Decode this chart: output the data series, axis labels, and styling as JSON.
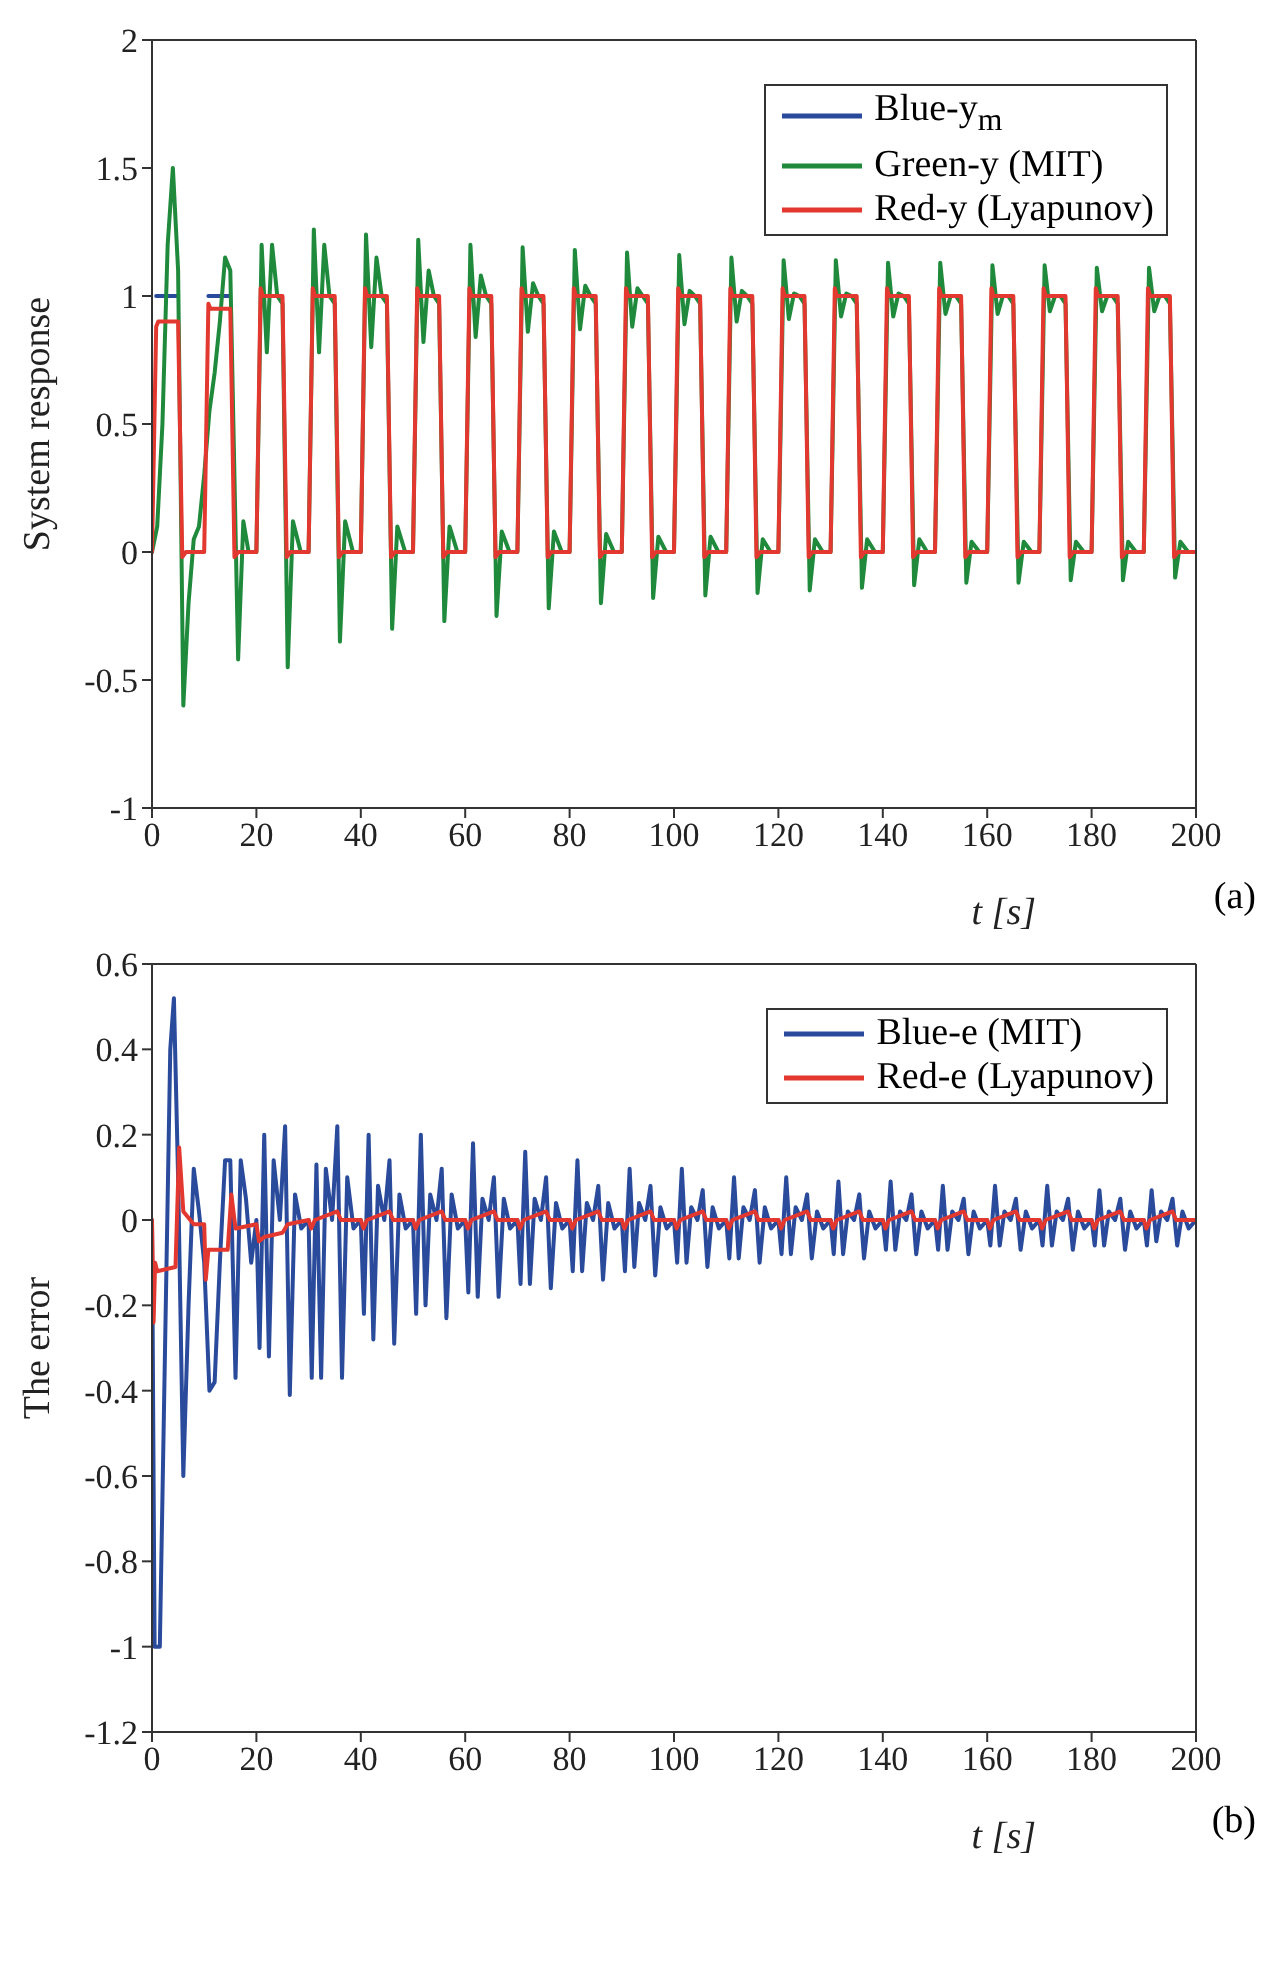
{
  "chart_data": [
    {
      "type": "line",
      "xlabel": "t [s]",
      "ylabel": "System response",
      "annotations": [
        "(a)"
      ],
      "xlim": [
        0,
        200
      ],
      "xticks": [
        0,
        20,
        40,
        60,
        80,
        100,
        120,
        140,
        160,
        180,
        200
      ],
      "ylim": [
        -1,
        2
      ],
      "yticks": [
        -1,
        -0.5,
        0,
        0.5,
        1,
        1.5,
        2
      ],
      "legend": "top right",
      "series": [
        {
          "name": "Blue-y$_{m}$",
          "color": "#2a4b9b",
          "x": [
            0.8,
            5,
            8,
            10.8,
            15
          ],
          "values": [
            1,
            1,
            null,
            1,
            1
          ]
        },
        {
          "name": "Green-y (MIT)",
          "color": "#1f8a3b",
          "x": [
            0,
            1,
            2,
            3,
            4,
            5,
            6,
            7,
            8,
            9,
            10,
            11,
            12,
            13,
            14,
            15,
            16.5,
            17.5,
            18.5,
            20,
            21,
            22,
            23,
            24,
            25,
            26,
            27,
            28.5,
            30,
            31,
            32,
            33,
            34,
            35,
            36,
            37,
            38.5,
            40,
            41,
            42,
            43,
            44,
            45,
            46,
            47,
            48.5,
            50,
            51,
            52,
            53,
            54,
            55,
            56,
            57,
            58.5,
            60,
            61,
            62,
            63,
            64,
            65,
            66,
            67,
            68.5,
            70,
            71,
            72,
            73,
            74,
            75,
            76,
            77,
            78.5,
            80,
            81,
            82,
            83,
            84,
            85,
            86,
            87,
            88.5,
            90,
            91,
            92,
            93,
            94,
            95,
            96,
            97,
            98.5,
            100,
            101,
            102,
            103,
            104,
            105,
            106,
            107,
            108.5,
            110,
            111,
            112,
            113,
            114,
            115,
            116,
            117,
            118.5,
            120,
            121,
            122,
            123,
            124,
            125,
            126,
            127,
            128.5,
            130,
            131,
            132,
            133,
            134,
            135,
            136,
            137,
            138.5,
            140,
            141,
            142,
            143,
            144,
            145,
            146,
            147,
            148.5,
            150,
            151,
            152,
            153,
            154,
            155,
            156,
            157,
            158.5,
            160,
            161,
            162,
            163,
            164,
            165,
            166,
            167,
            168.5,
            170,
            171,
            172,
            173,
            174,
            175,
            176,
            177,
            178.5,
            180,
            181,
            182,
            183,
            184,
            185,
            186,
            187,
            188.5,
            190,
            191,
            192,
            193,
            194,
            195,
            196,
            197,
            198.5,
            200
          ],
          "values": [
            0,
            0.1,
            0.5,
            1.2,
            1.5,
            1.1,
            -0.6,
            -0.2,
            0.05,
            0.1,
            0.3,
            0.55,
            0.7,
            0.9,
            1.15,
            1.1,
            -0.42,
            0.12,
            0,
            0,
            1.2,
            0.78,
            1.2,
            1,
            0.97,
            -0.45,
            0.12,
            0,
            0,
            1.26,
            0.78,
            1.2,
            1,
            0.97,
            -0.35,
            0.12,
            0,
            0,
            1.24,
            0.8,
            1.15,
            1,
            0.97,
            -0.3,
            0.1,
            0,
            0,
            1.22,
            0.82,
            1.1,
            1,
            0.97,
            -0.27,
            0.1,
            0,
            0,
            1.2,
            0.84,
            1.08,
            1,
            0.97,
            -0.25,
            0.08,
            0,
            0,
            1.19,
            0.86,
            1.05,
            1,
            0.97,
            -0.22,
            0.08,
            0,
            0,
            1.18,
            0.87,
            1.04,
            1,
            0.97,
            -0.2,
            0.07,
            0,
            0,
            1.17,
            0.88,
            1.03,
            1,
            0.97,
            -0.18,
            0.06,
            0,
            0,
            1.16,
            0.89,
            1.02,
            1,
            0.97,
            -0.17,
            0.06,
            0,
            0,
            1.15,
            0.9,
            1.02,
            1,
            0.97,
            -0.16,
            0.05,
            0,
            0,
            1.14,
            0.91,
            1.01,
            1,
            0.97,
            -0.15,
            0.05,
            0,
            0,
            1.14,
            0.92,
            1.01,
            1,
            0.97,
            -0.14,
            0.05,
            0,
            0,
            1.13,
            0.92,
            1.01,
            1,
            0.97,
            -0.13,
            0.05,
            0,
            0,
            1.13,
            0.93,
            1,
            1,
            0.97,
            -0.12,
            0.04,
            0,
            0,
            1.12,
            0.93,
            1,
            1,
            0.97,
            -0.12,
            0.04,
            0,
            0,
            1.12,
            0.94,
            1,
            1,
            0.97,
            -0.11,
            0.04,
            0,
            0,
            1.11,
            0.94,
            1,
            1,
            0.97,
            -0.11,
            0.04,
            0,
            0,
            1.11,
            0.94,
            1,
            1,
            0.97,
            -0.1,
            0.04,
            0,
            0
          ]
        },
        {
          "name": "Red-y (Lyapunov)",
          "color": "#e2382f",
          "x": [
            0,
            0.8,
            1.2,
            5,
            5.8,
            6.5,
            10,
            10.8,
            11.2,
            15,
            15.8,
            16.5,
            20,
            20.8,
            21.2,
            25,
            25.8,
            26.5,
            30,
            30.8,
            31.2,
            35,
            35.8,
            36.5,
            40,
            40.8,
            41.2,
            45,
            45.8,
            46.5,
            50,
            50.8,
            51.2,
            55,
            55.8,
            56.5,
            60,
            60.8,
            61.2,
            65,
            65.8,
            66.5,
            70,
            70.8,
            71.2,
            75,
            75.8,
            76.5,
            80,
            80.8,
            81.2,
            85,
            85.8,
            86.5,
            90,
            90.8,
            91.2,
            95,
            95.8,
            96.5,
            100,
            100.8,
            101.2,
            105,
            105.8,
            106.5,
            110,
            110.8,
            111.2,
            115,
            115.8,
            116.5,
            120,
            120.8,
            121.2,
            125,
            125.8,
            126.5,
            130,
            130.8,
            131.2,
            135,
            135.8,
            136.5,
            140,
            140.8,
            141.2,
            145,
            145.8,
            146.5,
            150,
            150.8,
            151.2,
            155,
            155.8,
            156.5,
            160,
            160.8,
            161.2,
            165,
            165.8,
            166.5,
            170,
            170.8,
            171.2,
            175,
            175.8,
            176.5,
            180,
            180.8,
            181.2,
            185,
            185.8,
            186.5,
            190,
            190.8,
            191.2,
            195,
            195.8,
            196.5,
            200
          ],
          "values": [
            0,
            0.88,
            0.9,
            0.9,
            -0.02,
            0,
            0,
            0.97,
            0.95,
            0.95,
            -0.02,
            0,
            0,
            1.03,
            1,
            1,
            -0.02,
            0,
            0,
            1.03,
            1,
            1,
            -0.02,
            0,
            0,
            1.03,
            1,
            1,
            -0.02,
            0,
            0,
            1.03,
            1,
            1,
            -0.02,
            0,
            0,
            1.03,
            1,
            1,
            -0.02,
            0,
            0,
            1.03,
            1,
            1,
            -0.02,
            0,
            0,
            1.03,
            1,
            1,
            -0.02,
            0,
            0,
            1.03,
            1,
            1,
            -0.02,
            0,
            0,
            1.03,
            1,
            1,
            -0.02,
            0,
            0,
            1.03,
            1,
            1,
            -0.02,
            0,
            0,
            1.03,
            1,
            1,
            -0.02,
            0,
            0,
            1.03,
            1,
            1,
            -0.02,
            0,
            0,
            1.03,
            1,
            1,
            -0.02,
            0,
            0,
            1.03,
            1,
            1,
            -0.02,
            0,
            0,
            1.03,
            1,
            1,
            -0.02,
            0,
            0,
            1.03,
            1,
            1,
            -0.02,
            0,
            0,
            1.03,
            1,
            1,
            -0.02,
            0,
            0,
            1.03,
            1,
            1,
            -0.02,
            0,
            0
          ]
        }
      ]
    },
    {
      "type": "line",
      "xlabel": "t [s]",
      "ylabel": "The error",
      "annotations": [
        "(b)"
      ],
      "xlim": [
        0,
        200
      ],
      "xticks": [
        0,
        20,
        40,
        60,
        80,
        100,
        120,
        140,
        160,
        180,
        200
      ],
      "ylim": [
        -1.2,
        0.6
      ],
      "yticks": [
        -1.2,
        -1,
        -0.8,
        -0.6,
        -0.4,
        -0.2,
        0,
        0.2,
        0.4,
        0.6
      ],
      "legend": "top right",
      "series": [
        {
          "name": "Blue-e (MIT)",
          "color": "#2a4b9b",
          "x": [
            0,
            0.5,
            1.5,
            2.5,
            3.5,
            4.2,
            5,
            6,
            7,
            8,
            9,
            10,
            11,
            12,
            13,
            14,
            15,
            16,
            17,
            18,
            19,
            20,
            20.6,
            21.5,
            22.4,
            23.3,
            24.5,
            25.5,
            26.4,
            27.4,
            28.6,
            30,
            30.6,
            31.5,
            32.4,
            33.3,
            34.5,
            35.5,
            36.4,
            37.4,
            38.6,
            40,
            40.6,
            41.5,
            42.4,
            43.3,
            44.5,
            45.5,
            46.4,
            47.4,
            48.6,
            50,
            50.6,
            51.5,
            52.4,
            53.3,
            54.5,
            55.5,
            56.4,
            57.4,
            58.6,
            60,
            60.6,
            61.5,
            62.4,
            63.3,
            64.5,
            65.5,
            66.4,
            67.4,
            68.6,
            70,
            70.6,
            71.5,
            72.4,
            73.3,
            74.5,
            75.5,
            76.4,
            77.4,
            78.6,
            80,
            80.6,
            81.5,
            82.4,
            83.3,
            84.5,
            85.5,
            86.4,
            87.4,
            88.6,
            90,
            90.6,
            91.5,
            92.4,
            93.3,
            94.5,
            95.5,
            96.4,
            97.4,
            98.6,
            100,
            100.6,
            101.5,
            102.4,
            103.3,
            104.5,
            105.5,
            106.4,
            107.4,
            108.6,
            110,
            110.6,
            111.5,
            112.4,
            113.3,
            114.5,
            115.5,
            116.4,
            117.4,
            118.6,
            120,
            120.6,
            121.5,
            122.4,
            123.3,
            124.5,
            125.5,
            126.4,
            127.4,
            128.6,
            130,
            130.6,
            131.5,
            132.4,
            133.3,
            134.5,
            135.5,
            136.4,
            137.4,
            138.6,
            140,
            140.6,
            141.5,
            142.4,
            143.3,
            144.5,
            145.5,
            146.4,
            147.4,
            148.6,
            150,
            150.6,
            151.5,
            152.4,
            153.3,
            154.5,
            155.5,
            156.4,
            157.4,
            158.6,
            160,
            160.6,
            161.5,
            162.4,
            163.3,
            164.5,
            165.5,
            166.4,
            167.4,
            168.6,
            170,
            170.6,
            171.5,
            172.4,
            173.3,
            174.5,
            175.5,
            176.4,
            177.4,
            178.6,
            180,
            180.6,
            181.5,
            182.4,
            183.3,
            184.5,
            185.5,
            186.4,
            187.4,
            188.6,
            190,
            190.6,
            191.5,
            192.4,
            193.3,
            194.5,
            195.5,
            196.4,
            197.4,
            198.6,
            200
          ],
          "values": [
            0,
            -1,
            -1,
            -0.3,
            0.4,
            0.52,
            0.1,
            -0.6,
            -0.2,
            0.12,
            0.02,
            -0.1,
            -0.4,
            -0.38,
            -0.1,
            0.14,
            0.14,
            -0.37,
            0.14,
            0.05,
            -0.1,
            0,
            -0.3,
            0.2,
            -0.32,
            0.14,
            0,
            0.22,
            -0.41,
            0.06,
            -0.02,
            0,
            -0.37,
            0.13,
            -0.37,
            0.12,
            0,
            0.22,
            -0.37,
            0.1,
            -0.02,
            0,
            -0.22,
            0.2,
            -0.28,
            0.08,
            0,
            0.14,
            -0.29,
            0.06,
            -0.02,
            0,
            -0.22,
            0.2,
            -0.2,
            0.06,
            0,
            0.12,
            -0.23,
            0.06,
            -0.02,
            0,
            -0.17,
            0.18,
            -0.18,
            0.05,
            0,
            0.1,
            -0.18,
            0.05,
            -0.02,
            0,
            -0.15,
            0.16,
            -0.15,
            0.05,
            0,
            0.1,
            -0.16,
            0.04,
            -0.02,
            0,
            -0.12,
            0.14,
            -0.12,
            0.04,
            0,
            0.08,
            -0.14,
            0.04,
            -0.02,
            0,
            -0.12,
            0.12,
            -0.11,
            0.04,
            0,
            0.08,
            -0.13,
            0.03,
            -0.02,
            0,
            -0.1,
            0.12,
            -0.1,
            0.03,
            0,
            0.07,
            -0.11,
            0.03,
            -0.02,
            0,
            -0.09,
            0.1,
            -0.09,
            0.03,
            0,
            0.07,
            -0.1,
            0.03,
            -0.02,
            0,
            -0.08,
            0.1,
            -0.08,
            0.03,
            0,
            0.06,
            -0.09,
            0.02,
            -0.02,
            0,
            -0.08,
            0.09,
            -0.08,
            0.02,
            0,
            0.06,
            -0.09,
            0.02,
            -0.02,
            0,
            -0.07,
            0.09,
            -0.07,
            0.02,
            0,
            0.06,
            -0.08,
            0.02,
            -0.02,
            0,
            -0.07,
            0.08,
            -0.07,
            0.02,
            0,
            0.05,
            -0.08,
            0.02,
            -0.02,
            0,
            -0.06,
            0.08,
            -0.06,
            0.02,
            0,
            0.05,
            -0.07,
            0.02,
            -0.02,
            0,
            -0.06,
            0.08,
            -0.06,
            0.02,
            0,
            0.05,
            -0.07,
            0.02,
            -0.02,
            0,
            -0.06,
            0.07,
            -0.06,
            0.02,
            0,
            0.05,
            -0.07,
            0.02,
            -0.02,
            0,
            -0.06,
            0.07,
            -0.05,
            0.02,
            0,
            0.05,
            -0.06,
            0.02,
            -0.02,
            0
          ]
        },
        {
          "name": "Red-e (Lyapunov)",
          "color": "#e2382f",
          "x": [
            0,
            0.3,
            0.6,
            1,
            4.5,
            5.2,
            6,
            8,
            10,
            10.3,
            10.8,
            14.5,
            15.2,
            16,
            20,
            20.5,
            21.5,
            25,
            26,
            30,
            30.5,
            31.2,
            35.5,
            36.2,
            40,
            40.5,
            41.2,
            45.5,
            46.2,
            50,
            50.5,
            51.2,
            55.5,
            56.2,
            60,
            60.5,
            61.2,
            65.5,
            66.2,
            70,
            70.5,
            71.2,
            75.5,
            76.2,
            80,
            80.5,
            81.2,
            85.5,
            86.2,
            90,
            90.5,
            91.2,
            95.5,
            96.2,
            100,
            100.5,
            101.2,
            105.5,
            106.2,
            110,
            110.5,
            111.2,
            115.5,
            116.2,
            120,
            120.5,
            121.2,
            125.5,
            126.2,
            130,
            130.5,
            131.2,
            135.5,
            136.2,
            140,
            140.5,
            141.2,
            145.5,
            146.2,
            150,
            150.5,
            151.2,
            155.5,
            156.2,
            160,
            160.5,
            161.2,
            165.5,
            166.2,
            170,
            170.5,
            171.2,
            175.5,
            176.2,
            180,
            180.5,
            181.2,
            185.5,
            186.2,
            190,
            190.5,
            191.2,
            195.5,
            196.2,
            200
          ],
          "values": [
            0,
            -0.24,
            -0.1,
            -0.12,
            -0.11,
            0.17,
            0.02,
            -0.01,
            -0.01,
            -0.14,
            -0.07,
            -0.07,
            0.06,
            -0.02,
            -0.01,
            -0.05,
            -0.04,
            -0.03,
            -0.01,
            0,
            -0.02,
            0,
            0.02,
            0,
            0,
            -0.02,
            0,
            0.02,
            0,
            0,
            -0.02,
            0,
            0.02,
            0,
            0,
            -0.02,
            0,
            0.02,
            0,
            0,
            -0.02,
            0,
            0.02,
            0,
            0,
            -0.02,
            0,
            0.02,
            0,
            0,
            -0.02,
            0,
            0.02,
            0,
            0,
            -0.02,
            0,
            0.02,
            0,
            0,
            -0.02,
            0,
            0.02,
            0,
            0,
            -0.02,
            0,
            0.02,
            0,
            0,
            -0.02,
            0,
            0.02,
            0,
            0,
            -0.02,
            0,
            0.02,
            0,
            0,
            -0.02,
            0,
            0.02,
            0,
            0,
            -0.02,
            0,
            0.02,
            0,
            0,
            -0.02,
            0,
            0.02,
            0,
            0,
            -0.02,
            0,
            0.02,
            0,
            0,
            -0.02,
            0,
            0.02,
            0,
            0
          ]
        }
      ]
    }
  ]
}
